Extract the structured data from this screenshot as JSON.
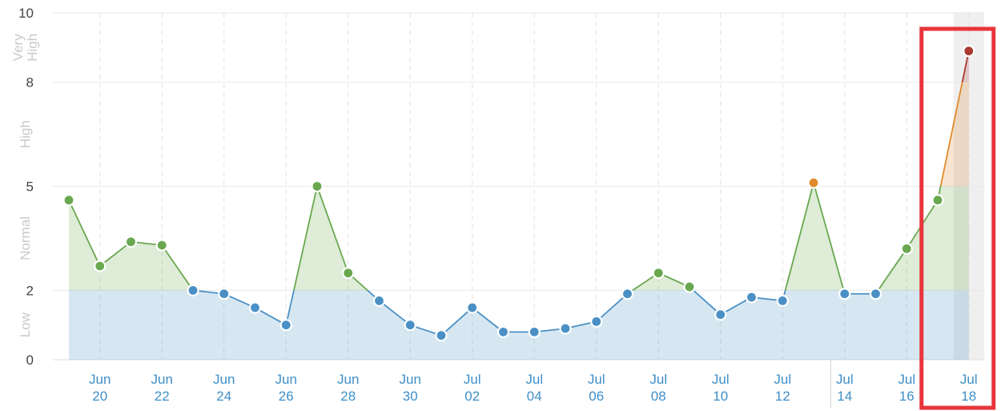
{
  "chart_data": {
    "type": "area",
    "x": [
      "Jun 19",
      "Jun 20",
      "Jun 21",
      "Jun 22",
      "Jun 23",
      "Jun 24",
      "Jun 25",
      "Jun 26",
      "Jun 27",
      "Jun 28",
      "Jun 29",
      "Jun 30",
      "Jul 01",
      "Jul 02",
      "Jul 03",
      "Jul 04",
      "Jul 05",
      "Jul 06",
      "Jul 07",
      "Jul 08",
      "Jul 09",
      "Jul 10",
      "Jul 11",
      "Jul 12",
      "Jul 13",
      "Jul 14",
      "Jul 15",
      "Jul 16",
      "Jul 17",
      "Jul 18"
    ],
    "values": [
      4.6,
      2.7,
      3.4,
      3.3,
      2.0,
      1.9,
      1.5,
      1.0,
      5.0,
      2.5,
      1.7,
      1.0,
      0.7,
      1.5,
      0.8,
      0.8,
      0.9,
      1.1,
      1.9,
      2.5,
      2.1,
      1.3,
      1.8,
      1.7,
      5.1,
      1.9,
      1.9,
      3.2,
      4.6,
      8.9
    ],
    "ylim": [
      0,
      10
    ],
    "yticks": [
      "0",
      "2",
      "5",
      "8",
      "10"
    ],
    "ytick_values": [
      0,
      2,
      5,
      8,
      10
    ],
    "bands": [
      {
        "label": "Low",
        "from": 0,
        "to": 2,
        "color": "#4a90c6"
      },
      {
        "label": "Normal",
        "from": 2,
        "to": 5,
        "color": "#6aa84f"
      },
      {
        "label": "High",
        "from": 5,
        "to": 8,
        "color": "#e08a2c"
      },
      {
        "label": "Very High",
        "from": 8,
        "to": 10,
        "color": "#a83a32"
      }
    ],
    "xtick_labels": [
      {
        "month": "Jun",
        "day": "20"
      },
      {
        "month": "Jun",
        "day": "22"
      },
      {
        "month": "Jun",
        "day": "24"
      },
      {
        "month": "Jun",
        "day": "26"
      },
      {
        "month": "Jun",
        "day": "28"
      },
      {
        "month": "Jun",
        "day": "30"
      },
      {
        "month": "Jul",
        "day": "02"
      },
      {
        "month": "Jul",
        "day": "04"
      },
      {
        "month": "Jul",
        "day": "06"
      },
      {
        "month": "Jul",
        "day": "08"
      },
      {
        "month": "Jul",
        "day": "10"
      },
      {
        "month": "Jul",
        "day": "12"
      },
      {
        "month": "Jul",
        "day": "14"
      },
      {
        "month": "Jul",
        "day": "16"
      },
      {
        "month": "Jul",
        "day": "18"
      }
    ],
    "xtick_index": [
      1,
      3,
      5,
      7,
      9,
      11,
      13,
      15,
      17,
      19,
      21,
      23,
      25,
      27,
      29
    ],
    "highlighted_index": 29,
    "highlight_box_color": "#e8353b",
    "grid": true
  }
}
